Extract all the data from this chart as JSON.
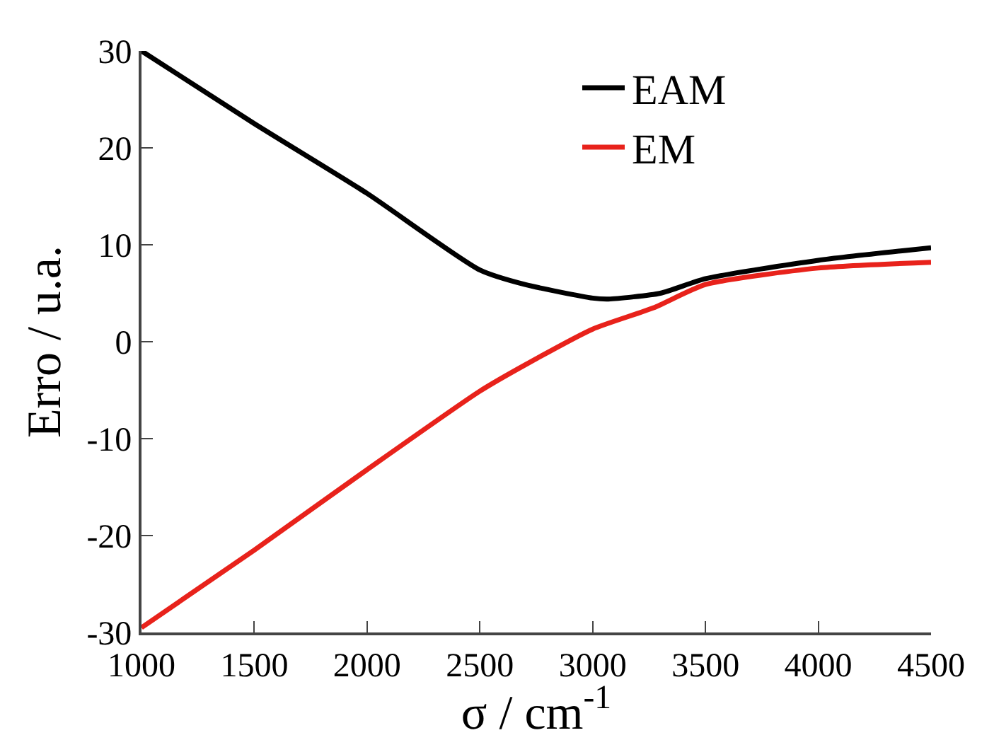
{
  "chart_data": {
    "type": "line",
    "xlabel": "σ / cm$^{-1}$",
    "ylabel": "Erro / u.a.",
    "xlim": [
      1000,
      4500
    ],
    "xticks": [
      1000,
      1500,
      2000,
      2500,
      3000,
      3500,
      4000,
      4500
    ],
    "ylim": [
      -30,
      30
    ],
    "yticks": [
      -30,
      -20,
      -10,
      0,
      10,
      20,
      30
    ],
    "grid": false,
    "legend": "top right",
    "marker": "none",
    "line_style": "solid",
    "series": [
      {
        "name": "EAM",
        "color": "#000000",
        "x": [
          1000,
          1500,
          2000,
          2500,
          2700,
          3000,
          3070,
          3300,
          3500,
          4000,
          4500
        ],
        "values": [
          30,
          22.5,
          15.3,
          7.4,
          5.9,
          4.5,
          4.4,
          5.0,
          6.5,
          8.4,
          9.7
        ]
      },
      {
        "name": "EM",
        "color": "#e8221b",
        "x": [
          1000,
          1500,
          2000,
          2500,
          2700,
          3000,
          3270,
          3500,
          4000,
          4500
        ],
        "values": [
          -29.5,
          -21.5,
          -13.2,
          -5.1,
          -2.4,
          1.3,
          3.5,
          5.9,
          7.6,
          8.2
        ]
      }
    ]
  }
}
